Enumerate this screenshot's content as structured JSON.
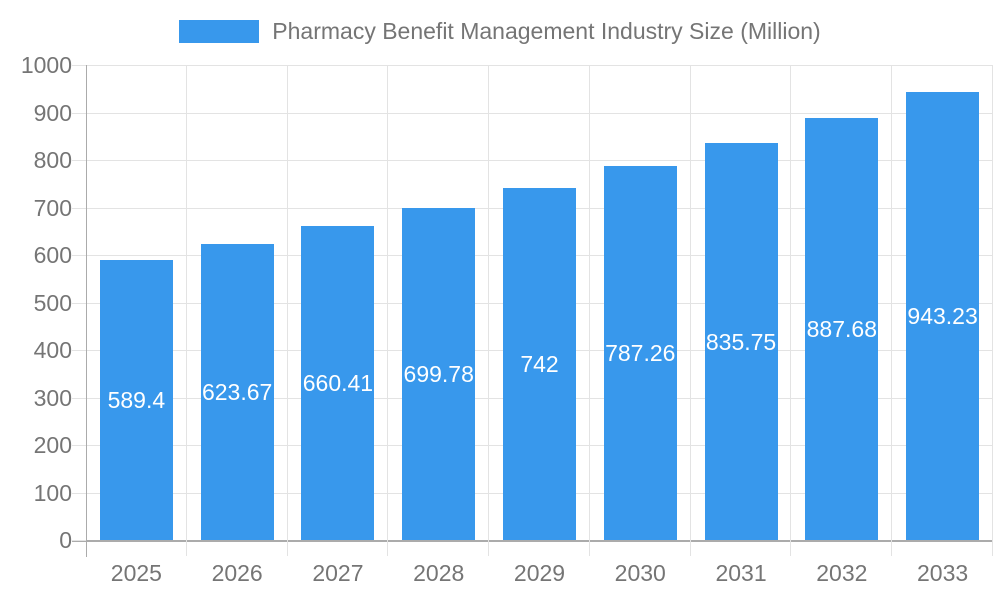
{
  "chart_data": {
    "type": "bar",
    "title": "Pharmacy Benefit Management Industry Size (Million)",
    "categories": [
      "2025",
      "2026",
      "2027",
      "2028",
      "2029",
      "2030",
      "2031",
      "2032",
      "2033"
    ],
    "values": [
      589.4,
      623.67,
      660.41,
      699.78,
      742,
      787.26,
      835.75,
      887.68,
      943.23
    ],
    "value_labels": [
      "589.4",
      "623.67",
      "660.41",
      "699.78",
      "742",
      "787.26",
      "835.75",
      "887.68",
      "943.23"
    ],
    "xlabel": "",
    "ylabel": "",
    "ylim": [
      0,
      1000
    ],
    "ytick_step": 100,
    "ytick_labels": [
      "0",
      "100",
      "200",
      "300",
      "400",
      "500",
      "600",
      "700",
      "800",
      "900",
      "1000"
    ],
    "grid": true,
    "legend_position": "top-center",
    "colors": {
      "bar": "#3898EC",
      "bar_label": "#FFFFFF",
      "axis_text": "#757575",
      "title_text": "#757575",
      "gridline": "#E3E3E3",
      "axis_line": "#ABABAB",
      "background": "#FFFFFF"
    }
  }
}
